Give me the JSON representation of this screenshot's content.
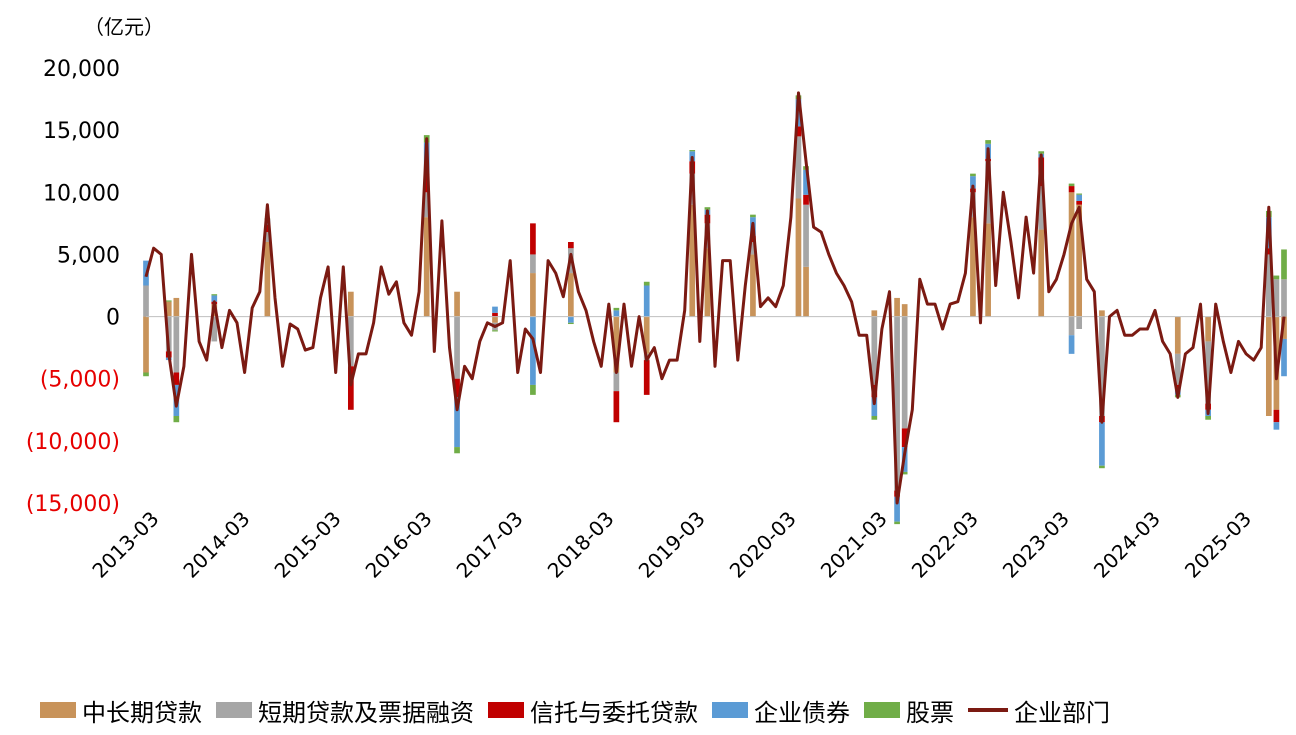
{
  "chart_data": {
    "type": "bar",
    "stacked": true,
    "title": "",
    "unit_label": "（亿元）",
    "xlabel": "",
    "ylabel": "",
    "ylim": [
      -15000,
      20000
    ],
    "y_ticks": [
      {
        "value": 20000,
        "label": "20,000",
        "color": "#000000"
      },
      {
        "value": 15000,
        "label": "15,000",
        "color": "#000000"
      },
      {
        "value": 10000,
        "label": "10,000",
        "color": "#000000"
      },
      {
        "value": 5000,
        "label": "5,000",
        "color": "#000000"
      },
      {
        "value": 0,
        "label": "0",
        "color": "#000000"
      },
      {
        "value": -5000,
        "label": "(5,000)",
        "color": "#e60000"
      },
      {
        "value": -10000,
        "label": "(10,000)",
        "color": "#e60000"
      },
      {
        "value": -15000,
        "label": "(15,000)",
        "color": "#e60000"
      }
    ],
    "x_start": "2013-03",
    "x_end": "2025-03",
    "x_tick_labels": [
      "2013-03",
      "2014-03",
      "2015-03",
      "2016-03",
      "2017-03",
      "2018-03",
      "2019-03",
      "2020-03",
      "2021-03",
      "2022-03",
      "2023-03",
      "2024-03",
      "2025-03"
    ],
    "legend_placement": "bottom",
    "grid": false,
    "colors": {
      "mlt_loans": "#c8935a",
      "short_loans": "#a6a6a6",
      "trust_entrusted": "#c00000",
      "corp_bonds": "#5b9bd5",
      "equity": "#70ad47",
      "corporate": "#7b1a12"
    },
    "legend": [
      {
        "key": "mlt_loans",
        "name": "中长期贷款",
        "kind": "bar"
      },
      {
        "key": "short_loans",
        "name": "短期贷款及票据融资",
        "kind": "bar"
      },
      {
        "key": "trust_entrusted",
        "name": "信托与委托贷款",
        "kind": "bar"
      },
      {
        "key": "corp_bonds",
        "name": "企业债券",
        "kind": "bar"
      },
      {
        "key": "equity",
        "name": "股票",
        "kind": "bar"
      },
      {
        "key": "corporate",
        "name": "企业部门",
        "kind": "line"
      }
    ],
    "line_total": [
      [
        0,
        3200
      ],
      [
        1,
        5500
      ],
      [
        2,
        5000
      ],
      [
        3,
        -3000
      ],
      [
        4,
        -7200
      ],
      [
        5,
        -4000
      ],
      [
        6,
        5000
      ],
      [
        7,
        -2000
      ],
      [
        8,
        -3500
      ],
      [
        9,
        1200
      ],
      [
        10,
        -2500
      ],
      [
        11,
        500
      ],
      [
        12,
        -500
      ],
      [
        13,
        -4500
      ],
      [
        14,
        700
      ],
      [
        15,
        2000
      ],
      [
        16,
        9000
      ],
      [
        17,
        1500
      ],
      [
        18,
        -4000
      ],
      [
        19,
        -600
      ],
      [
        20,
        -1000
      ],
      [
        21,
        -2700
      ],
      [
        22,
        -2500
      ],
      [
        23,
        1500
      ],
      [
        24,
        4000
      ],
      [
        25,
        -4500
      ],
      [
        26,
        4000
      ],
      [
        27,
        -5500
      ],
      [
        28,
        -3000
      ],
      [
        29,
        -3000
      ],
      [
        30,
        -500
      ],
      [
        31,
        4000
      ],
      [
        32,
        1800
      ],
      [
        33,
        2800
      ],
      [
        34,
        -500
      ],
      [
        35,
        -1500
      ],
      [
        36,
        2000
      ],
      [
        37,
        14300
      ],
      [
        38,
        -2800
      ],
      [
        39,
        7700
      ],
      [
        40,
        -2500
      ],
      [
        41,
        -7500
      ],
      [
        42,
        -4000
      ],
      [
        43,
        -5000
      ],
      [
        44,
        -2000
      ],
      [
        45,
        -500
      ],
      [
        46,
        -800
      ],
      [
        47,
        -500
      ],
      [
        48,
        4500
      ],
      [
        49,
        -4500
      ],
      [
        50,
        -1000
      ],
      [
        51,
        -1800
      ],
      [
        52,
        -4500
      ],
      [
        53,
        4500
      ],
      [
        54,
        3500
      ],
      [
        55,
        1600
      ],
      [
        56,
        5000
      ],
      [
        57,
        2000
      ],
      [
        58,
        500
      ],
      [
        59,
        -2000
      ],
      [
        60,
        -4000
      ],
      [
        61,
        1000
      ],
      [
        62,
        -4500
      ],
      [
        63,
        1000
      ],
      [
        64,
        -4000
      ],
      [
        65,
        0
      ],
      [
        66,
        -3500
      ],
      [
        67,
        -2500
      ],
      [
        68,
        -5000
      ],
      [
        69,
        -3500
      ],
      [
        70,
        -3500
      ],
      [
        71,
        500
      ],
      [
        72,
        12800
      ],
      [
        73,
        -2000
      ],
      [
        74,
        8500
      ],
      [
        75,
        -4000
      ],
      [
        76,
        4500
      ],
      [
        77,
        4500
      ],
      [
        78,
        -3500
      ],
      [
        79,
        2500
      ],
      [
        80,
        7500
      ],
      [
        81,
        800
      ],
      [
        82,
        1500
      ],
      [
        83,
        800
      ],
      [
        84,
        2500
      ],
      [
        85,
        8000
      ],
      [
        86,
        18000
      ],
      [
        87,
        12500
      ],
      [
        88,
        7200
      ],
      [
        89,
        6800
      ],
      [
        90,
        5000
      ],
      [
        91,
        3500
      ],
      [
        92,
        2500
      ],
      [
        93,
        1200
      ],
      [
        94,
        -1500
      ],
      [
        95,
        -1500
      ],
      [
        96,
        -7000
      ],
      [
        97,
        -1000
      ],
      [
        98,
        2000
      ],
      [
        99,
        -15000
      ],
      [
        100,
        -11000
      ],
      [
        101,
        -7500
      ],
      [
        102,
        3000
      ],
      [
        103,
        1000
      ],
      [
        104,
        1000
      ],
      [
        105,
        -1000
      ],
      [
        106,
        1000
      ],
      [
        107,
        1200
      ],
      [
        108,
        3500
      ],
      [
        109,
        10500
      ],
      [
        110,
        -500
      ],
      [
        111,
        13500
      ],
      [
        112,
        2500
      ],
      [
        113,
        10000
      ],
      [
        114,
        6000
      ],
      [
        115,
        1500
      ],
      [
        116,
        8000
      ],
      [
        117,
        3500
      ],
      [
        118,
        13000
      ],
      [
        119,
        2000
      ],
      [
        120,
        3000
      ],
      [
        121,
        5000
      ],
      [
        122,
        7500
      ],
      [
        123,
        8800
      ],
      [
        124,
        3000
      ],
      [
        125,
        2000
      ],
      [
        126,
        -8500
      ],
      [
        127,
        0
      ],
      [
        128,
        500
      ],
      [
        129,
        -1500
      ],
      [
        130,
        -1500
      ],
      [
        131,
        -1000
      ],
      [
        132,
        -1000
      ],
      [
        133,
        500
      ],
      [
        134,
        -2000
      ],
      [
        135,
        -3000
      ],
      [
        136,
        -6500
      ],
      [
        137,
        -3000
      ],
      [
        138,
        -2500
      ],
      [
        139,
        1000
      ],
      [
        140,
        -7800
      ],
      [
        141,
        1000
      ],
      [
        142,
        -2000
      ],
      [
        143,
        -4500
      ],
      [
        144,
        -2000
      ],
      [
        145,
        -3000
      ],
      [
        146,
        -3500
      ],
      [
        147,
        -2500
      ],
      [
        148,
        8800
      ],
      [
        149,
        -5000
      ],
      [
        150,
        0
      ]
    ],
    "bar_stacks": [
      [
        0,
        -4500,
        2500,
        0,
        2000,
        -300
      ],
      [
        3,
        1200,
        -2800,
        -500,
        -200,
        100
      ],
      [
        4,
        1500,
        -4500,
        -1000,
        -2500,
        -500
      ],
      [
        9,
        1000,
        -2000,
        200,
        500,
        100
      ],
      [
        16,
        6000,
        800,
        600,
        400,
        100
      ],
      [
        27,
        2000,
        -4000,
        -3500,
        0,
        0
      ],
      [
        37,
        8000,
        2000,
        1500,
        2500,
        600
      ],
      [
        41,
        2000,
        -5000,
        -1500,
        -4000,
        -500
      ],
      [
        46,
        -500,
        -600,
        300,
        500,
        -100
      ],
      [
        51,
        3500,
        1500,
        2500,
        -5500,
        -800
      ],
      [
        56,
        3500,
        2000,
        500,
        -500,
        -100
      ],
      [
        62,
        -4500,
        -1500,
        -2500,
        500,
        200
      ],
      [
        66,
        -3000,
        -500,
        -2800,
        2500,
        300
      ],
      [
        72,
        9000,
        2500,
        1000,
        800,
        100
      ],
      [
        74,
        5500,
        2000,
        700,
        400,
        200
      ],
      [
        80,
        5000,
        1000,
        500,
        1500,
        200
      ],
      [
        86,
        9500,
        5000,
        800,
        2200,
        300
      ],
      [
        87,
        4000,
        5000,
        800,
        2000,
        300
      ],
      [
        96,
        500,
        -5500,
        -1000,
        -1500,
        -300
      ],
      [
        99,
        1500,
        -14000,
        -500,
        -2000,
        -200
      ],
      [
        100,
        1000,
        -9000,
        -1500,
        -2000,
        -200
      ],
      [
        109,
        8000,
        2000,
        300,
        1000,
        200
      ],
      [
        111,
        7500,
        5000,
        200,
        1200,
        300
      ],
      [
        118,
        7000,
        3500,
        2300,
        300,
        200
      ],
      [
        122,
        10000,
        -1500,
        500,
        -1500,
        200
      ],
      [
        123,
        9000,
        -1000,
        300,
        500,
        100
      ],
      [
        126,
        500,
        -8000,
        -500,
        -3500,
        -200
      ],
      [
        136,
        -3000,
        -2500,
        -300,
        -500,
        -200
      ],
      [
        140,
        -2000,
        -5000,
        -500,
        -500,
        -300
      ],
      [
        148,
        -8000,
        5000,
        500,
        2500,
        500
      ],
      [
        149,
        -7500,
        3000,
        -1000,
        -600,
        300
      ],
      [
        150,
        -1800,
        3000,
        0,
        -3000,
        2400
      ]
    ]
  }
}
